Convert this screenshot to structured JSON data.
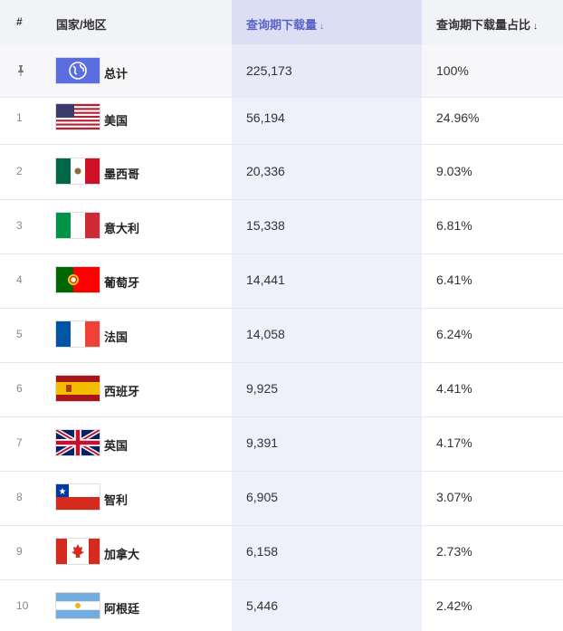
{
  "header": {
    "rank": "#",
    "country": "国家/地区",
    "downloads": "查询期下载量",
    "share": "查询期下载量占比",
    "sort_arrow": "↓"
  },
  "total": {
    "pin": "📌",
    "name": "总计",
    "downloads": "225,173",
    "share": "100%"
  },
  "rows": [
    {
      "rank": "1",
      "name": "美国",
      "flag": "us-flag",
      "downloads": "56,194",
      "share": "24.96%"
    },
    {
      "rank": "2",
      "name": "墨西哥",
      "flag": "mx-flag",
      "downloads": "20,336",
      "share": "9.03%"
    },
    {
      "rank": "3",
      "name": "意大利",
      "flag": "it-flag",
      "downloads": "15,338",
      "share": "6.81%"
    },
    {
      "rank": "4",
      "name": "葡萄牙",
      "flag": "pt-flag",
      "downloads": "14,441",
      "share": "6.41%"
    },
    {
      "rank": "5",
      "name": "法国",
      "flag": "fr-flag",
      "downloads": "14,058",
      "share": "6.24%"
    },
    {
      "rank": "6",
      "name": "西班牙",
      "flag": "es-flag",
      "downloads": "9,925",
      "share": "4.41%"
    },
    {
      "rank": "7",
      "name": "英国",
      "flag": "gb-flag",
      "downloads": "9,391",
      "share": "4.17%"
    },
    {
      "rank": "8",
      "name": "智利",
      "flag": "cl-flag",
      "downloads": "6,905",
      "share": "3.07%"
    },
    {
      "rank": "9",
      "name": "加拿大",
      "flag": "ca-flag",
      "downloads": "6,158",
      "share": "2.73%"
    },
    {
      "rank": "10",
      "name": "阿根廷",
      "flag": "ar-flag",
      "downloads": "5,446",
      "share": "2.42%"
    }
  ],
  "colors": {
    "accent": "#5a64c8",
    "sorted_column": "#eef0fb",
    "header_bg": "#f2f3f6"
  }
}
